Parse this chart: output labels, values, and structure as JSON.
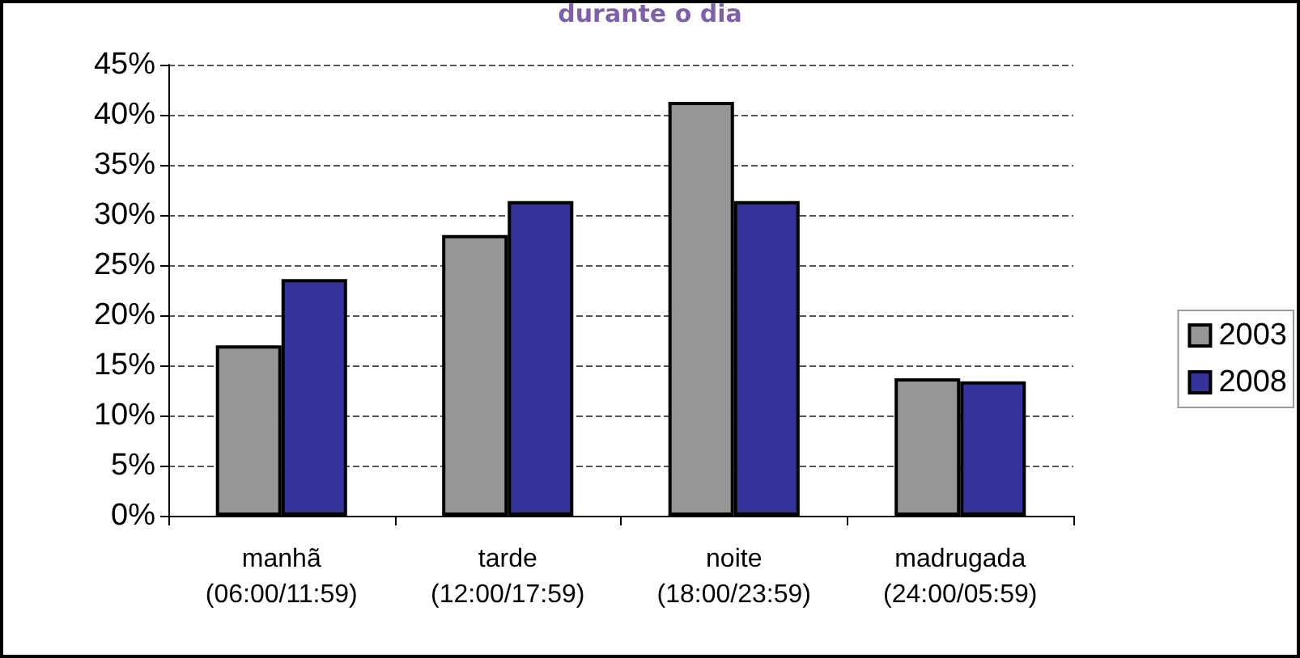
{
  "chart_data": {
    "type": "bar",
    "title": "durante o dia",
    "categories": [
      "manhã\n(06:00/11:59)",
      "tarde\n(12:00/17:59)",
      "noite\n(18:00/23:59)",
      "madrugada\n(24:00/05:59)"
    ],
    "series": [
      {
        "name": "2003",
        "color": "#969696",
        "values": [
          17,
          28,
          41.3,
          13.7
        ]
      },
      {
        "name": "2008",
        "color": "#333399",
        "values": [
          23.6,
          31.4,
          31.4,
          13.4
        ]
      }
    ],
    "ylim": [
      0,
      45
    ],
    "yticks": [
      {
        "value": 0,
        "label": "0%"
      },
      {
        "value": 5,
        "label": "5%"
      },
      {
        "value": 10,
        "label": "10%"
      },
      {
        "value": 15,
        "label": "15%"
      },
      {
        "value": 20,
        "label": "20%"
      },
      {
        "value": 25,
        "label": "25%"
      },
      {
        "value": 30,
        "label": "30%"
      },
      {
        "value": 35,
        "label": "35%"
      },
      {
        "value": 40,
        "label": "40%"
      },
      {
        "value": 45,
        "label": "45%"
      }
    ],
    "grid": "y",
    "legend": "right"
  }
}
